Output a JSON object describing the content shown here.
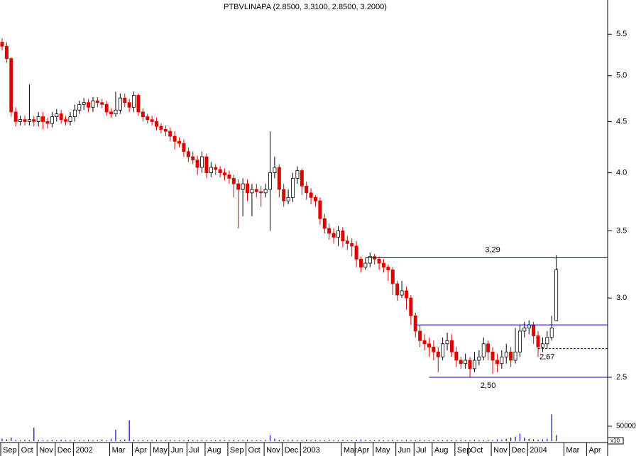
{
  "chart_data": {
    "type": "candlestick",
    "title": "PTBVLINAPA (2.8500, 3.3100, 2.8500, 3.2000)",
    "open": [
      5.4,
      5.35,
      5.2,
      4.6,
      4.5,
      4.52,
      4.5,
      4.52,
      4.5,
      4.55,
      4.5,
      4.48,
      4.55,
      4.58,
      4.52,
      4.5,
      4.55,
      4.62,
      4.68,
      4.7,
      4.65,
      4.72,
      4.7,
      4.68,
      4.6,
      4.58,
      4.62,
      4.75,
      4.7,
      4.65,
      4.78,
      4.6,
      4.55,
      4.52,
      4.5,
      4.45,
      4.42,
      4.4,
      4.35,
      4.3,
      4.28,
      4.2,
      4.15,
      4.12,
      4.05,
      4.15,
      4.0,
      4.05,
      4.03,
      4.0,
      3.98,
      3.95,
      3.9,
      3.85,
      3.9,
      3.82,
      3.85,
      3.83,
      3.82,
      3.85,
      4.0,
      4.05,
      3.85,
      3.75,
      3.78,
      3.95,
      4.02,
      3.88,
      3.82,
      3.78,
      3.75,
      3.6,
      3.52,
      3.48,
      3.45,
      3.5,
      3.42,
      3.4,
      3.38,
      3.28,
      3.22,
      3.25,
      3.3,
      3.28,
      3.25,
      3.22,
      3.2,
      3.1,
      3.02,
      3.05,
      3.0,
      2.88,
      2.78,
      2.72,
      2.7,
      2.68,
      2.65,
      2.62,
      2.7,
      2.72,
      2.65,
      2.6,
      2.58,
      2.6,
      2.55,
      2.6,
      2.62,
      2.7,
      2.65,
      2.6,
      2.58,
      2.62,
      2.65,
      2.6,
      2.65,
      2.78,
      2.8,
      2.82,
      2.75,
      2.68,
      2.7,
      2.74,
      2.85
    ],
    "high": [
      5.45,
      5.4,
      5.22,
      4.65,
      4.56,
      4.56,
      4.9,
      4.56,
      4.6,
      4.6,
      4.54,
      4.6,
      4.63,
      4.62,
      4.56,
      4.6,
      4.68,
      4.72,
      4.75,
      4.74,
      4.76,
      4.76,
      4.74,
      4.72,
      4.64,
      4.82,
      4.8,
      4.8,
      4.74,
      4.82,
      4.8,
      4.64,
      4.58,
      4.56,
      4.54,
      4.48,
      4.46,
      4.44,
      4.4,
      4.34,
      4.32,
      4.24,
      4.2,
      4.16,
      4.2,
      4.18,
      4.1,
      4.08,
      4.06,
      4.04,
      4.02,
      3.98,
      3.94,
      3.95,
      3.94,
      3.9,
      3.9,
      3.88,
      3.9,
      4.4,
      4.15,
      4.08,
      3.9,
      3.85,
      4.0,
      4.06,
      4.04,
      3.92,
      3.86,
      3.8,
      3.78,
      3.64,
      3.56,
      3.52,
      3.54,
      3.53,
      3.46,
      3.44,
      3.42,
      3.3,
      3.29,
      3.33,
      3.32,
      3.3,
      3.28,
      3.24,
      3.22,
      3.12,
      3.12,
      3.08,
      3.02,
      2.9,
      2.82,
      2.76,
      2.74,
      2.72,
      2.68,
      2.74,
      2.77,
      2.76,
      2.68,
      2.62,
      2.64,
      2.62,
      2.65,
      2.66,
      2.74,
      2.72,
      2.68,
      2.64,
      2.66,
      2.7,
      2.68,
      2.8,
      2.82,
      2.84,
      2.85,
      2.84,
      2.78,
      2.74,
      2.78,
      2.88,
      3.31
    ],
    "low": [
      5.3,
      5.15,
      4.55,
      4.45,
      4.46,
      4.46,
      4.46,
      4.45,
      4.45,
      4.42,
      4.43,
      4.44,
      4.5,
      4.48,
      4.46,
      4.46,
      4.5,
      4.58,
      4.62,
      4.6,
      4.6,
      4.65,
      4.64,
      4.56,
      4.54,
      4.55,
      4.58,
      4.65,
      4.6,
      4.6,
      4.56,
      4.5,
      4.48,
      4.46,
      4.41,
      4.38,
      4.35,
      4.3,
      4.22,
      4.24,
      4.15,
      4.1,
      4.08,
      3.98,
      4.0,
      3.95,
      3.96,
      3.98,
      3.96,
      3.93,
      3.9,
      3.78,
      3.52,
      3.62,
      3.75,
      3.62,
      3.78,
      3.7,
      3.78,
      3.5,
      3.95,
      3.78,
      3.7,
      3.72,
      3.74,
      3.9,
      3.8,
      3.76,
      3.72,
      3.7,
      3.55,
      3.48,
      3.43,
      3.4,
      3.38,
      3.37,
      3.35,
      3.3,
      3.22,
      3.18,
      3.2,
      3.22,
      3.24,
      3.2,
      3.18,
      3.12,
      3.02,
      2.98,
      3.0,
      2.92,
      2.82,
      2.74,
      2.68,
      2.66,
      2.62,
      2.6,
      2.53,
      2.6,
      2.66,
      2.62,
      2.56,
      2.55,
      2.55,
      2.5,
      2.53,
      2.57,
      2.6,
      2.6,
      2.52,
      2.53,
      2.55,
      2.58,
      2.56,
      2.58,
      2.62,
      2.74,
      2.76,
      2.7,
      2.62,
      2.65,
      2.67,
      2.72,
      2.85
    ],
    "close": [
      5.35,
      5.2,
      4.6,
      4.5,
      4.52,
      4.5,
      4.52,
      4.5,
      4.55,
      4.5,
      4.48,
      4.55,
      4.58,
      4.52,
      4.5,
      4.55,
      4.62,
      4.68,
      4.7,
      4.65,
      4.72,
      4.7,
      4.68,
      4.6,
      4.58,
      4.62,
      4.75,
      4.7,
      4.65,
      4.78,
      4.6,
      4.55,
      4.52,
      4.5,
      4.45,
      4.42,
      4.4,
      4.35,
      4.3,
      4.28,
      4.2,
      4.15,
      4.12,
      4.05,
      4.15,
      4.0,
      4.05,
      4.03,
      4.0,
      3.98,
      3.95,
      3.9,
      3.85,
      3.9,
      3.82,
      3.85,
      3.83,
      3.82,
      3.85,
      4.0,
      4.05,
      3.85,
      3.75,
      3.78,
      3.95,
      4.02,
      3.88,
      3.82,
      3.78,
      3.75,
      3.6,
      3.52,
      3.48,
      3.45,
      3.5,
      3.42,
      3.4,
      3.38,
      3.28,
      3.22,
      3.25,
      3.3,
      3.28,
      3.25,
      3.22,
      3.2,
      3.1,
      3.02,
      3.05,
      3.0,
      2.88,
      2.78,
      2.72,
      2.7,
      2.68,
      2.65,
      2.62,
      2.7,
      2.72,
      2.65,
      2.6,
      2.58,
      2.6,
      2.55,
      2.6,
      2.62,
      2.7,
      2.65,
      2.6,
      2.58,
      2.62,
      2.65,
      2.6,
      2.65,
      2.78,
      2.8,
      2.82,
      2.75,
      2.68,
      2.7,
      2.74,
      2.8,
      3.2
    ],
    "volume": [
      8000,
      6000,
      12000,
      4000,
      3000,
      5000,
      3000,
      45000,
      4000,
      3000,
      3000,
      4000,
      3000,
      5000,
      3000,
      3000,
      4000,
      3000,
      3000,
      4000,
      3000,
      3000,
      5000,
      3000,
      8000,
      38000,
      4000,
      6000,
      70000,
      5000,
      3000,
      4000,
      3000,
      3000,
      4000,
      3000,
      3000,
      4000,
      3000,
      3000,
      3000,
      4000,
      3000,
      3000,
      4000,
      3000,
      3000,
      3000,
      4000,
      3000,
      3000,
      4000,
      3000,
      3000,
      4000,
      3000,
      3000,
      3000,
      4000,
      20000,
      8000,
      4000,
      3000,
      3000,
      4000,
      3000,
      3000,
      4000,
      3000,
      3000,
      3000,
      3000,
      4000,
      3000,
      3000,
      4000,
      3000,
      3000,
      5000,
      6000,
      4000,
      3000,
      3000,
      4000,
      3000,
      3000,
      4000,
      3000,
      3000,
      4000,
      3000,
      3000,
      4000,
      3000,
      3000,
      4000,
      3000,
      3000,
      4000,
      3000,
      3000,
      4000,
      3000,
      3000,
      4000,
      3000,
      3000,
      4000,
      3000,
      6000,
      5000,
      8000,
      12000,
      15000,
      25000,
      12000,
      8000,
      6000,
      5000,
      6000,
      8000,
      90000,
      20000
    ],
    "up_color": "#ffffff",
    "down_color": "#e00000",
    "volume_color": "#0000cc",
    "level_color": "#0000c0",
    "log_scale": true,
    "ylim": [
      2.35,
      5.95
    ],
    "yticks": [
      2.5,
      {
        "value": 3,
        "label": "3.0"
      },
      3.5,
      {
        "value": 4,
        "label": "4.0"
      },
      4.5,
      {
        "value": 5,
        "label": "5.0"
      },
      5.5
    ],
    "y2lim": [
      0,
      100000
    ],
    "y2ticks": [
      50000
    ],
    "volume_scale_label": "x10",
    "xlim": [
      0,
      133
    ],
    "xticks": [
      {
        "value": 0,
        "label": "Sep"
      },
      {
        "value": 4,
        "label": "Oct"
      },
      {
        "value": 8,
        "label": "Nov"
      },
      {
        "value": 12,
        "label": "Dec"
      },
      {
        "value": 16,
        "label": "2002"
      },
      {
        "value": 24,
        "label": "Mar"
      },
      {
        "value": 29,
        "label": "Apr"
      },
      {
        "value": 33,
        "label": "May"
      },
      {
        "value": 37,
        "label": "Jun"
      },
      {
        "value": 41,
        "label": "Jul"
      },
      {
        "value": 45,
        "label": "Aug"
      },
      {
        "value": 50,
        "label": "Sep"
      },
      {
        "value": 54,
        "label": "Oct"
      },
      {
        "value": 58,
        "label": "Nov"
      },
      {
        "value": 62,
        "label": "Dec"
      },
      {
        "value": 66,
        "label": "2003"
      },
      {
        "value": 75,
        "label": "Mar"
      },
      {
        "value": 78,
        "label": "Apr"
      },
      {
        "value": 82,
        "label": "May"
      },
      {
        "value": 87,
        "label": "Jun"
      },
      {
        "value": 91,
        "label": "Jul"
      },
      {
        "value": 95,
        "label": "Aug"
      },
      {
        "value": 100,
        "label": "Sep"
      },
      {
        "value": 103,
        "label": "Oct"
      },
      {
        "value": 108,
        "label": "Nov"
      },
      {
        "value": 112,
        "label": "Dec"
      },
      {
        "value": 116,
        "label": "2004"
      },
      {
        "value": 124,
        "label": "Mar"
      },
      {
        "value": 129,
        "label": "Apr"
      }
    ],
    "levels": [
      {
        "value": 3.29,
        "label": "3,29",
        "start": 80,
        "style": "solid"
      },
      {
        "value": 2.82,
        "start": 91,
        "style": "solid"
      },
      {
        "value": 2.67,
        "label": "2,67",
        "start": 118,
        "style": "dashed"
      },
      {
        "value": 2.5,
        "label": "2,50",
        "start": 94,
        "style": "solid"
      }
    ]
  }
}
